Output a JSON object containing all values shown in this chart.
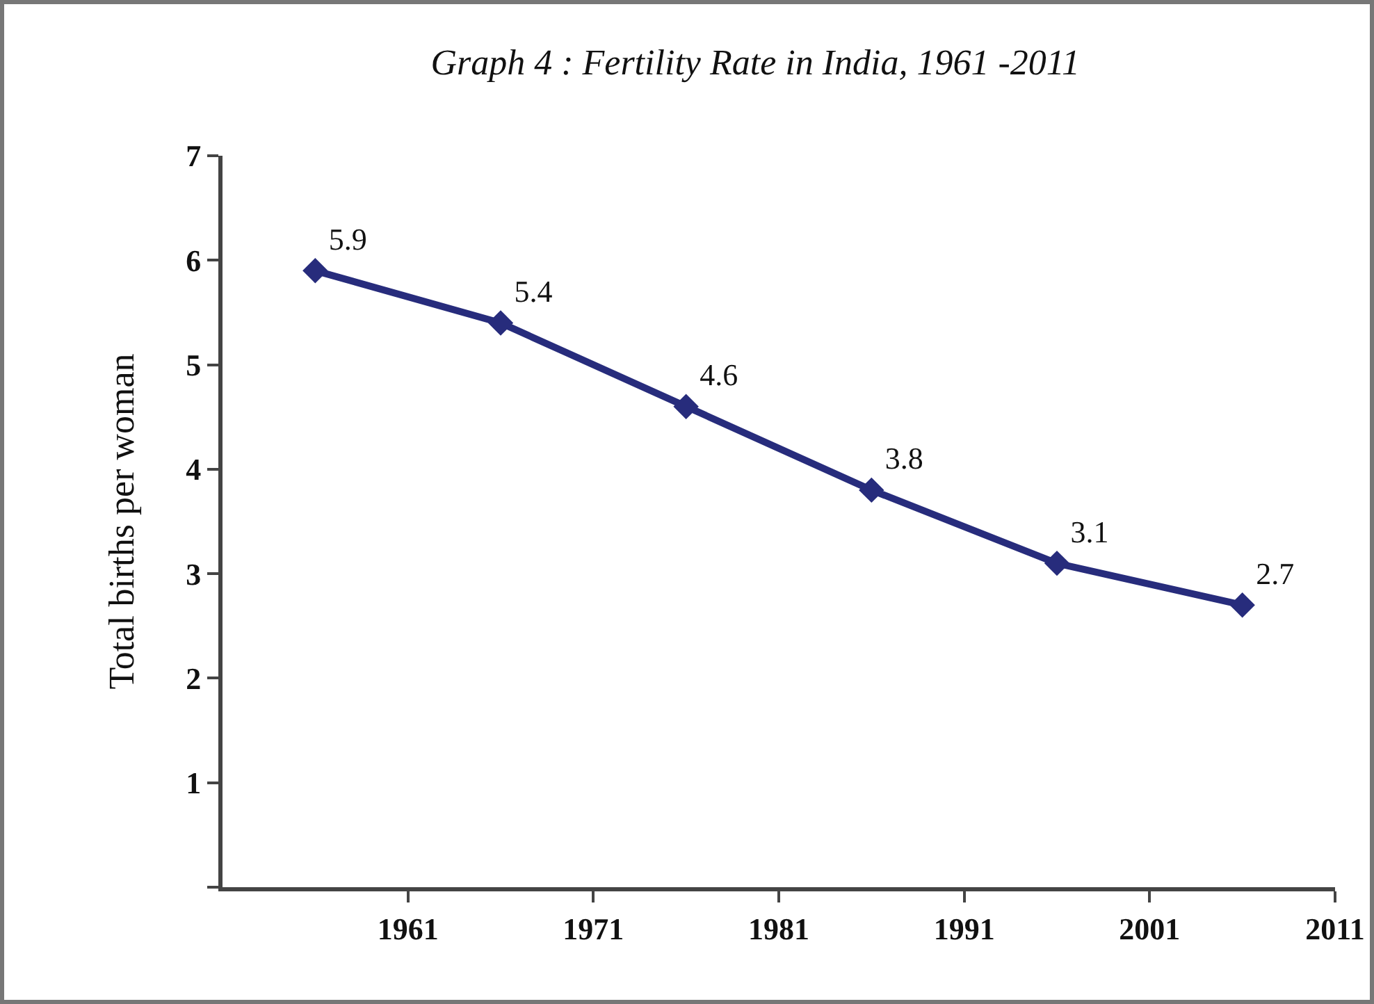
{
  "chart_data": {
    "type": "line",
    "title": "Graph 4 : Fertility Rate in India, 1961 -2011",
    "ylabel": "Total births per woman",
    "x": [
      1956,
      1966,
      1976,
      1986,
      1996,
      2006
    ],
    "series": [
      {
        "color": "#272c7c",
        "values": [
          5.9,
          5.4,
          4.6,
          3.8,
          3.1,
          2.7
        ]
      }
    ],
    "xlim": [
      1951,
      2011
    ],
    "xticks": [
      1961,
      1971,
      1981,
      1991,
      2001,
      2011
    ],
    "ylim": [
      0,
      7
    ],
    "yticks": [
      {
        "value": 0,
        "label": null
      },
      1,
      2,
      3,
      4,
      5,
      6,
      7
    ],
    "data_labels": true,
    "marker": "diamond",
    "line_style": "solid"
  }
}
